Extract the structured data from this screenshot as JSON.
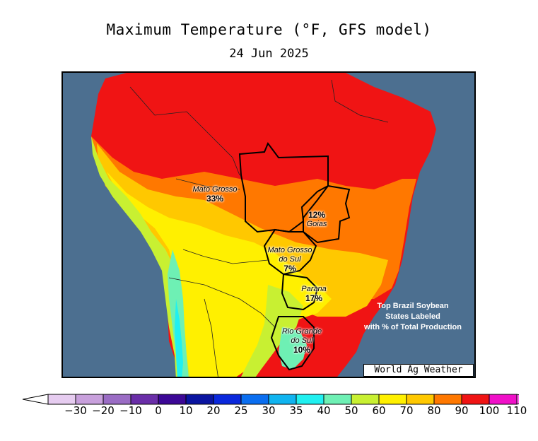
{
  "title": "Maximum Temperature (°F, GFS model)",
  "date": "24 Jun 2025",
  "note_lines": [
    "Top Brazil Soybean",
    "States Labeled",
    "with % of Total Production"
  ],
  "credit": "World Ag Weather",
  "states": [
    {
      "key": "mato_grosso",
      "name": "Mato Grosso",
      "pct": "33%"
    },
    {
      "key": "goias",
      "name": "Goias",
      "pct": "12%"
    },
    {
      "key": "mato_grosso_do_sul",
      "name": "Mato Grosso do Sul",
      "name_lines": [
        "Mato Grosso",
        "do Sul"
      ],
      "pct": "7%"
    },
    {
      "key": "parana",
      "name": "Parana",
      "pct": "17%"
    },
    {
      "key": "rio_grande_do_sul",
      "name": "Rio Grande do Sul",
      "name_lines": [
        "Rio Grande",
        "do Sul"
      ],
      "pct": "10%"
    }
  ],
  "legend": {
    "ticks": [
      "−30",
      "−20",
      "−10",
      "0",
      "10",
      "20",
      "25",
      "30",
      "35",
      "40",
      "50",
      "60",
      "70",
      "80",
      "90",
      "100",
      "110"
    ],
    "colors": [
      "#e6ccf0",
      "#c8a0dc",
      "#9a6cc4",
      "#6a2ea8",
      "#3c0896",
      "#0a14a0",
      "#0a28dc",
      "#0a6ef0",
      "#10b4f0",
      "#20f0f0",
      "#6ef0b4",
      "#c8f032",
      "#fff000",
      "#ffc800",
      "#ff7800",
      "#f01414",
      "#f010c8"
    ],
    "under_color": "#ffffff",
    "over_color": "#ff66ee"
  },
  "colors": {
    "ocean": "#4c6f90",
    "border": "#000000"
  }
}
